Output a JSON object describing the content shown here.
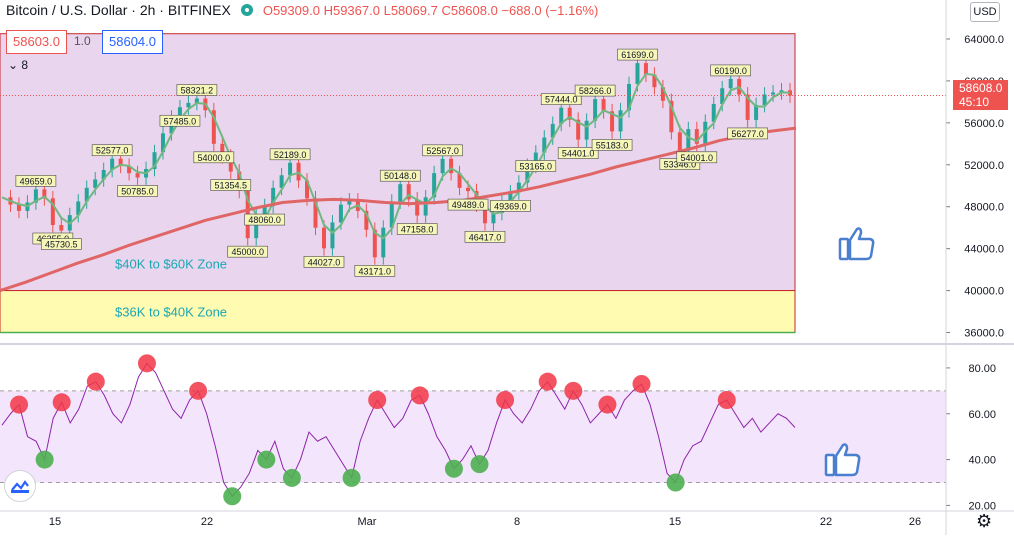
{
  "header": {
    "symbol": "Bitcoin / U.S. Dollar · 2h · BITFINEX",
    "open": "O59309.0",
    "high": "H59367.0",
    "low": "L58069.7",
    "close": "C58608.0",
    "change": "−688.0 (−1.16%)",
    "sell_price": "58603.0",
    "spread": "1.0",
    "buy_price": "58604.0",
    "volume_toggle": "8"
  },
  "currency_label": "USD",
  "last_price": {
    "price": "58608.0",
    "countdown": "45:10"
  },
  "colors": {
    "up_candle": "#26a69a",
    "down_candle": "#ef5350",
    "fast_ma": "#6fb87f",
    "slow_ma": "#e06666",
    "zone_purple": "#e9d5ee",
    "zone_yellow": "#fffbb0",
    "rsi_line": "#8e24aa",
    "rsi_band": "#f3e5fb",
    "overbought_marker": "#f23645",
    "oversold_marker": "#4caf50",
    "thumbs_up": "#4a7fd0"
  },
  "icons": [
    "thumbs-up-icon",
    "tradingview-logo-icon",
    "gear-icon"
  ],
  "chart_data": [
    {
      "type": "line",
      "title": "Bitcoin / U.S. Dollar · 2h · BITFINEX",
      "ylim": [
        35000,
        66000
      ],
      "y_ticks": [
        "36000.0",
        "40000.0",
        "44000.0",
        "48000.0",
        "52000.0",
        "56000.0",
        "60000.0",
        "64000.0"
      ],
      "x_ticks": [
        "15",
        "22",
        "Mar",
        "8",
        "15",
        "22",
        "26"
      ],
      "zones": [
        {
          "label": "$40K to $60K Zone",
          "from": 40000,
          "to": 64500
        },
        {
          "label": "$36K to $40K Zone",
          "from": 36000,
          "to": 40000
        }
      ],
      "price_labels": [
        "49659.0",
        "46255.0",
        "45730.5",
        "52577.0",
        "50785.0",
        "57485.0",
        "58321.2",
        "54000.0",
        "51354.5",
        "52189.0",
        "48060.0",
        "45000.0",
        "44027.0",
        "43171.0",
        "50148.0",
        "47158.0",
        "52567.0",
        "49489.0",
        "46417.0",
        "49369.0",
        "57444.0",
        "58266.0",
        "54401.0",
        "55183.0",
        "53165.0",
        "61699.0",
        "60190.0",
        "53346.0",
        "56277.0",
        "54001.0"
      ],
      "series": [
        {
          "name": "",
          "values": [
            48900,
            48200,
            47600,
            48400,
            49659,
            48800,
            46255,
            45730,
            47200,
            48500,
            49800,
            50600,
            51500,
            52577,
            51900,
            51200,
            50785,
            51600,
            53200,
            55000,
            56500,
            57485,
            57900,
            58321,
            57200,
            54000,
            52800,
            51354,
            49500,
            45000,
            47300,
            48060,
            49800,
            51000,
            52189,
            50500,
            48800,
            46000,
            44027,
            46500,
            48200,
            48600,
            47600,
            45800,
            43171,
            46000,
            48500,
            50148,
            48700,
            47158,
            48900,
            51200,
            52567,
            51200,
            49800,
            49489,
            48200,
            46417,
            47400,
            48600,
            49369,
            50300,
            51900,
            53165,
            54600,
            55900,
            57444,
            56300,
            54401,
            56200,
            58266,
            57100,
            55183,
            57200,
            59700,
            61699,
            60600,
            59400,
            58100,
            55100,
            53346,
            55400,
            54001,
            56100,
            57800,
            59300,
            60190,
            58700,
            56277,
            57700,
            58700,
            58900,
            59100,
            58608
          ]
        },
        {
          "name": "",
          "values": [
            40000,
            40800,
            41700,
            42600,
            43400,
            44300,
            45100,
            45900,
            46700,
            47300,
            47900,
            48400,
            48600,
            48700,
            48600,
            48400,
            48300,
            48400,
            48600,
            49000,
            49400,
            49900,
            50500,
            51100,
            51800,
            52400,
            53000,
            53600,
            54300,
            54800,
            55200,
            55500
          ]
        }
      ]
    },
    {
      "type": "line",
      "ylim": [
        18,
        90
      ],
      "y_ticks": [
        "20.00",
        "40.00",
        "60.00",
        "80.00"
      ],
      "bands": [
        30,
        70
      ],
      "series": [
        {
          "name": "",
          "values": [
            55,
            60,
            64,
            50,
            48,
            40,
            58,
            65,
            56,
            62,
            72,
            74,
            68,
            60,
            56,
            64,
            76,
            82,
            78,
            70,
            62,
            58,
            66,
            70,
            60,
            46,
            30,
            24,
            28,
            34,
            44,
            40,
            48,
            36,
            32,
            40,
            52,
            48,
            50,
            44,
            38,
            32,
            48,
            58,
            66,
            60,
            54,
            58,
            66,
            68,
            60,
            50,
            44,
            36,
            40,
            46,
            38,
            44,
            56,
            66,
            60,
            56,
            62,
            70,
            74,
            68,
            62,
            70,
            64,
            56,
            60,
            64,
            58,
            66,
            70,
            73,
            64,
            50,
            34,
            30,
            40,
            46,
            48,
            56,
            64,
            66,
            60,
            54,
            58,
            52,
            56,
            60,
            58,
            54
          ]
        }
      ]
    }
  ]
}
